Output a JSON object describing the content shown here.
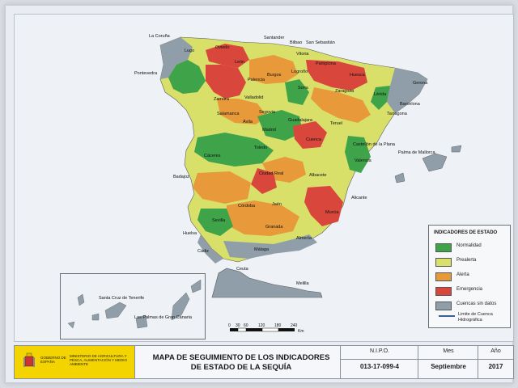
{
  "map": {
    "cities": [
      "La Coruña",
      "Lugo",
      "Pontevedra",
      "Oviedo",
      "Santander",
      "Bilbao",
      "San Sebastián",
      "Vitoria",
      "Pamplona",
      "León",
      "Palencia",
      "Burgos",
      "Logroño",
      "Huesca",
      "Gerona",
      "Barcelona",
      "Lérida",
      "Tarragona",
      "Zaragoza",
      "Soria",
      "Valladolid",
      "Zamora",
      "Salamanca",
      "Ávila",
      "Segovia",
      "Madrid",
      "Guadalajara",
      "Teruel",
      "Castellón de la Plana",
      "Valencia",
      "Cuenca",
      "Toledo",
      "Cáceres",
      "Badajoz",
      "Ciudad Real",
      "Albacete",
      "Alicante",
      "Murcia",
      "Jaén",
      "Córdoba",
      "Sevilla",
      "Huelva",
      "Granada",
      "Almería",
      "Málaga",
      "Cádiz",
      "Ceuta",
      "Melilla",
      "Palma de Mallorca",
      "Santa Cruz de Tenerife",
      "Las Palmas de Gran Canaria"
    ],
    "scale_ticks": [
      "0",
      "30",
      "60",
      "120",
      "180",
      "240"
    ],
    "scale_unit": "Km"
  },
  "legend": {
    "title": "INDICADORES DE ESTADO",
    "items": [
      {
        "label": "Normalidad",
        "color": "#3fa34a"
      },
      {
        "label": "Prealerta",
        "color": "#d8e06a"
      },
      {
        "label": "Alerta",
        "color": "#e89a3a"
      },
      {
        "label": "Emergencia",
        "color": "#d9463c"
      },
      {
        "label": "Cuencas sin datos",
        "color": "#8f9ea8"
      }
    ],
    "boundary_label": "Limite de Cuenca Hidrográfica"
  },
  "footer": {
    "logo_gov": "GOBIERNO DE ESPAÑA",
    "logo_ministry": "MINISTERIO DE AGRICULTURA Y PESCA, ALIMENTACIÓN Y MEDIO AMBIENTE",
    "title_line1": "MAPA DE SEGUIMIENTO DE LOS INDICADORES",
    "title_line2": "DE ESTADO DE LA SEQUÍA",
    "nipo_label": "N.I.P.O.",
    "nipo_value": "013-17-099-4",
    "mes_label": "Mes",
    "mes_value": "Septiembre",
    "ano_label": "Año",
    "ano_value": "2017"
  }
}
